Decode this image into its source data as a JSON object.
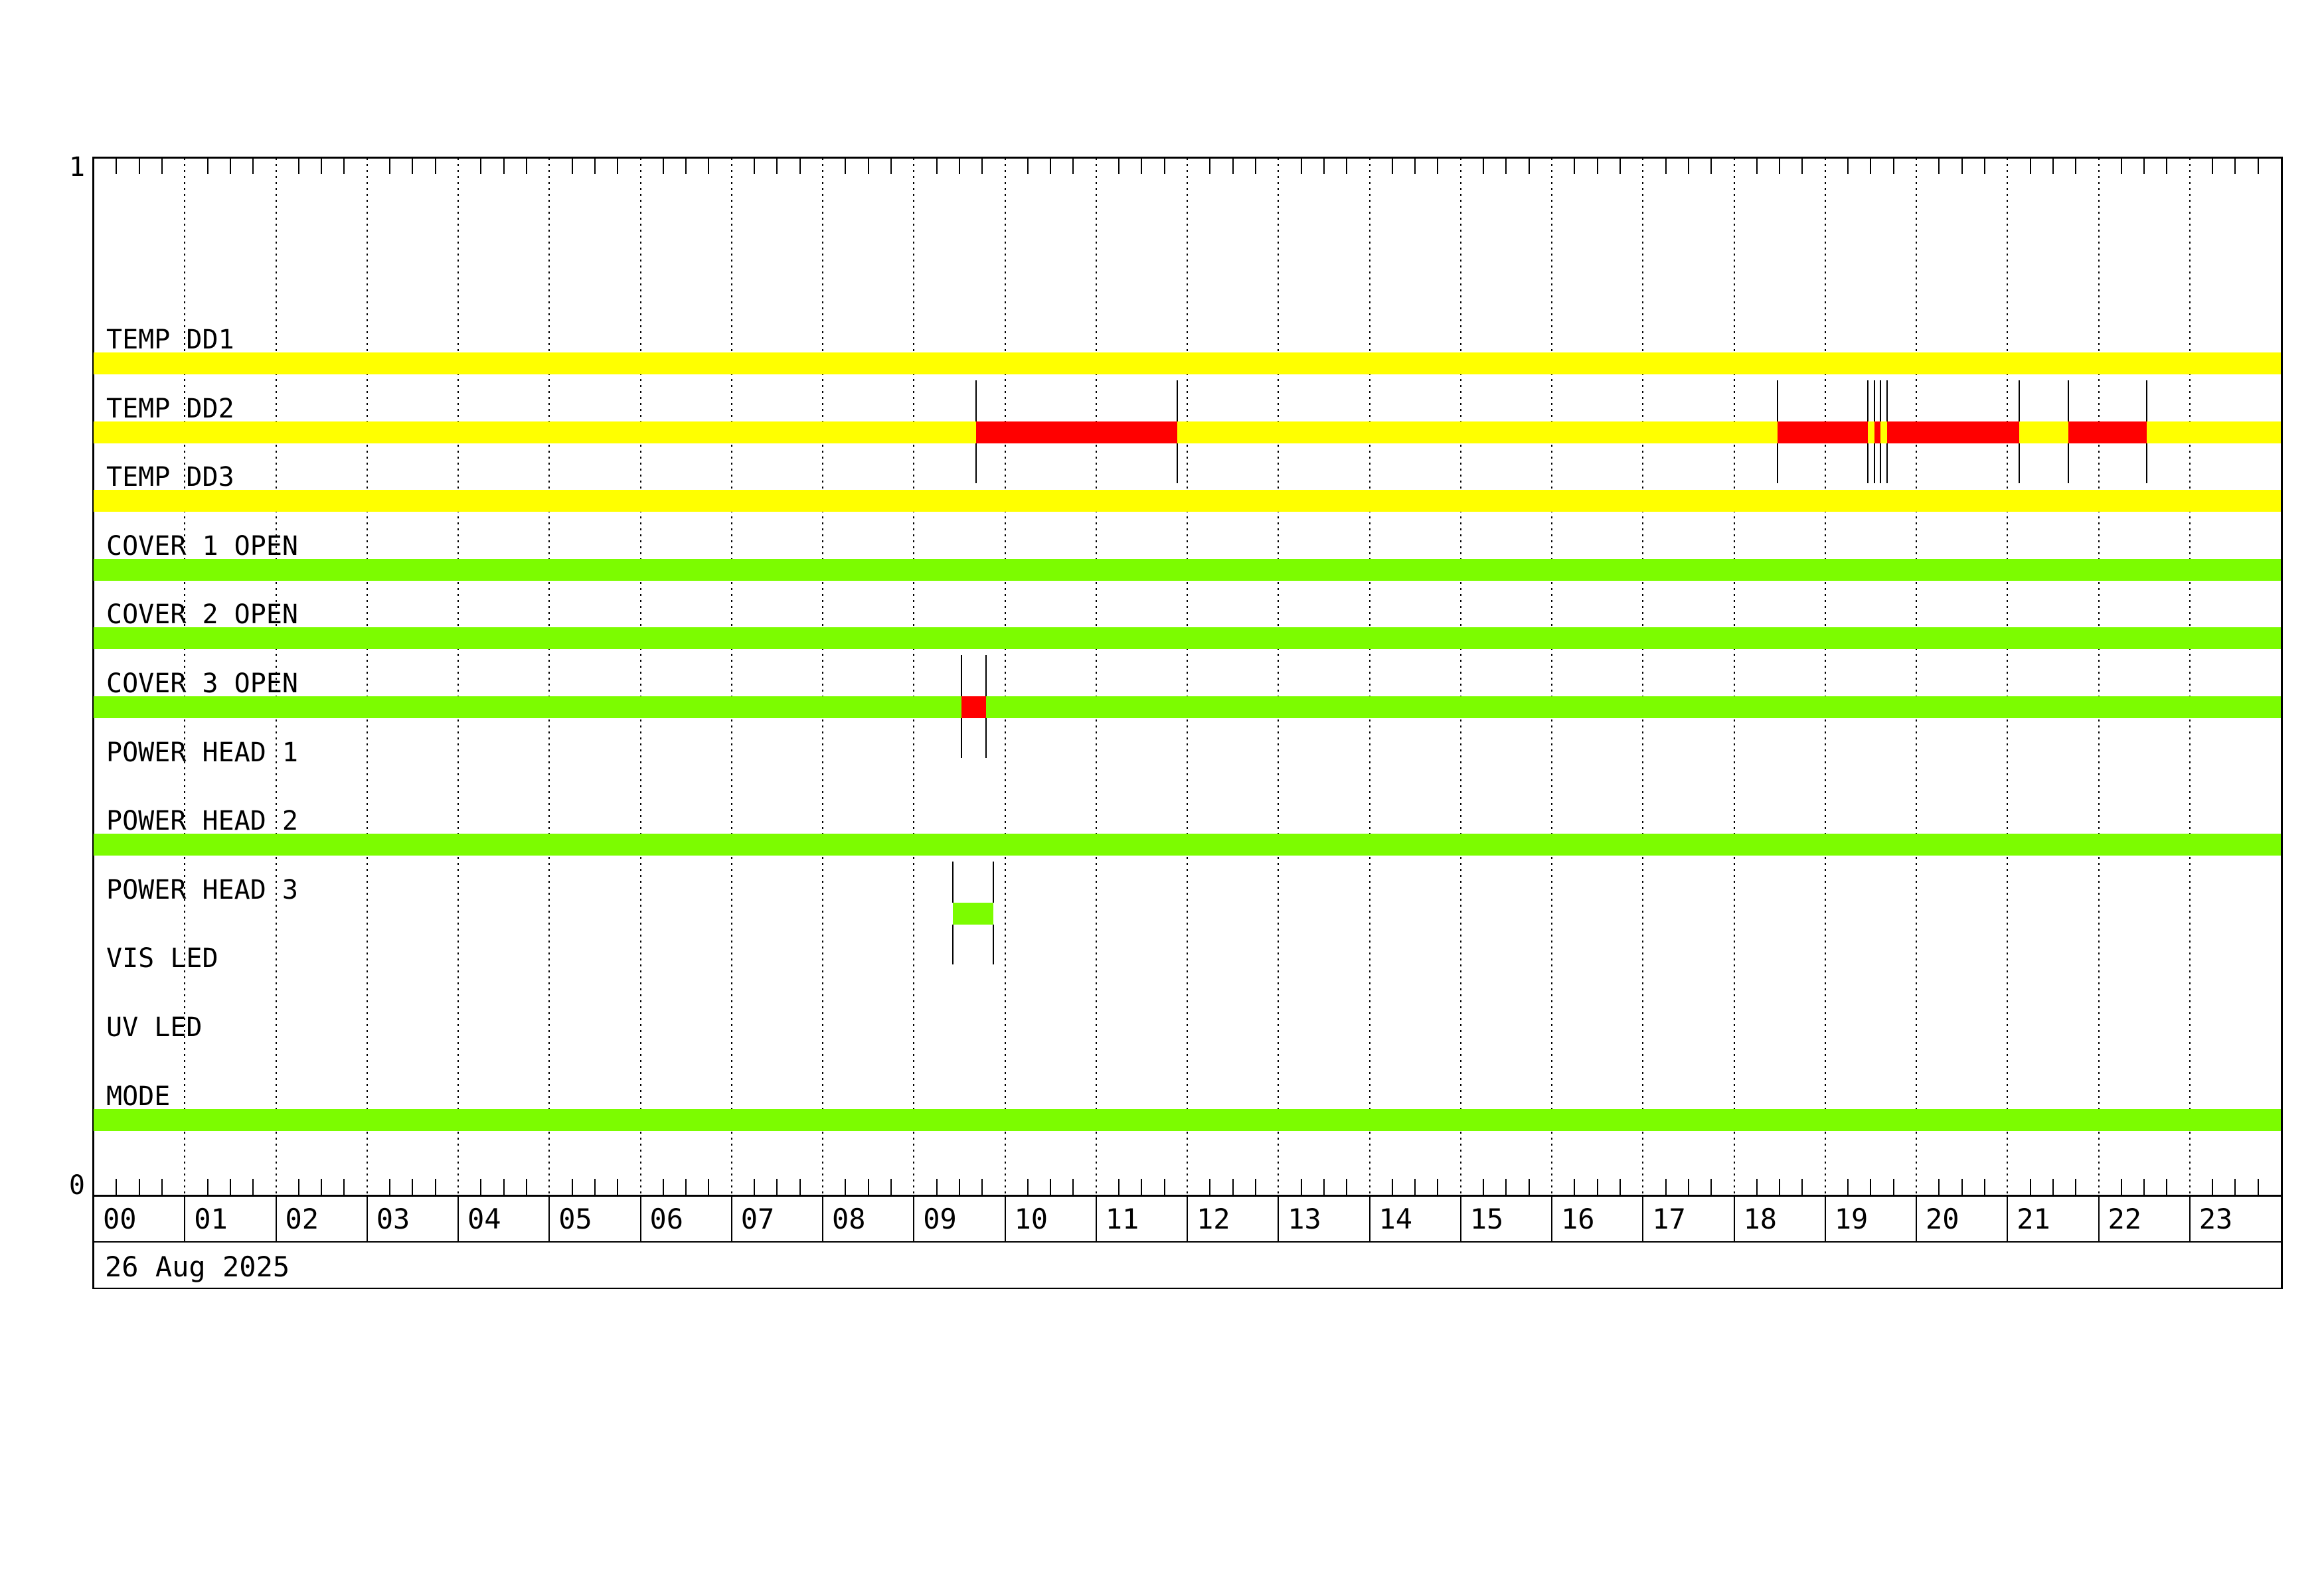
{
  "chart_data": {
    "type": "timeline",
    "description": "24-hour device status timeline with binary state bars per channel",
    "x": {
      "unit": "hour of day",
      "range_hours": [
        0,
        24
      ],
      "hour_tick_labels": [
        "00",
        "01",
        "02",
        "03",
        "04",
        "05",
        "06",
        "07",
        "08",
        "09",
        "10",
        "11",
        "12",
        "13",
        "14",
        "15",
        "16",
        "17",
        "18",
        "19",
        "20",
        "21",
        "22",
        "23"
      ],
      "minor_tick_minutes": 15,
      "grid": "dotted vertical line at each hour",
      "date_label": "26 Aug 2025"
    },
    "y": {
      "top_label": "1",
      "bottom_label": "0"
    },
    "colors": {
      "yellow": "#FFFF00",
      "green": "#7CFC00",
      "red": "#FF0000",
      "line": "#000000"
    },
    "rows": [
      {
        "label": "TEMP DD1",
        "base": {
          "color": "yellow",
          "start": 0,
          "end": 24
        },
        "overlays": [],
        "markers": []
      },
      {
        "label": "TEMP DD2",
        "base": {
          "color": "yellow",
          "start": 0,
          "end": 24
        },
        "overlays": [
          {
            "color": "red",
            "start": 9.68,
            "end": 11.89,
            "start_time": "09:41",
            "end_time": "11:53"
          },
          {
            "color": "red",
            "start": 18.48,
            "end": 19.47,
            "start_time": "18:29",
            "end_time": "19:28"
          },
          {
            "color": "red",
            "start": 19.54,
            "end": 19.61,
            "start_time": "19:32",
            "end_time": "19:37"
          },
          {
            "color": "red",
            "start": 19.68,
            "end": 21.13,
            "start_time": "19:41",
            "end_time": "21:08"
          },
          {
            "color": "red",
            "start": 21.67,
            "end": 22.53,
            "start_time": "21:40",
            "end_time": "22:32"
          }
        ],
        "markers": [
          9.68,
          11.89,
          18.48,
          19.47,
          19.54,
          19.61,
          19.68,
          21.13,
          21.67,
          22.53
        ]
      },
      {
        "label": "TEMP DD3",
        "base": {
          "color": "yellow",
          "start": 0,
          "end": 24
        },
        "overlays": [],
        "markers": []
      },
      {
        "label": "COVER 1 OPEN",
        "base": {
          "color": "green",
          "start": 0,
          "end": 24
        },
        "overlays": [],
        "markers": []
      },
      {
        "label": "COVER 2 OPEN",
        "base": {
          "color": "green",
          "start": 0,
          "end": 24
        },
        "overlays": [],
        "markers": []
      },
      {
        "label": "COVER 3 OPEN",
        "base": {
          "color": "green",
          "start": 0,
          "end": 24
        },
        "overlays": [
          {
            "color": "red",
            "start": 9.52,
            "end": 9.79,
            "start_time": "09:31",
            "end_time": "09:47"
          }
        ],
        "markers": [
          9.52,
          9.79
        ]
      },
      {
        "label": "POWER HEAD 1",
        "base": null,
        "overlays": [],
        "markers": []
      },
      {
        "label": "POWER HEAD 2",
        "base": {
          "color": "green",
          "start": 0,
          "end": 24
        },
        "overlays": [],
        "markers": []
      },
      {
        "label": "POWER HEAD 3",
        "base": null,
        "overlays": [
          {
            "color": "green",
            "start": 9.43,
            "end": 9.87,
            "start_time": "09:26",
            "end_time": "09:52"
          }
        ],
        "markers": [
          9.43,
          9.87
        ]
      },
      {
        "label": "VIS LED",
        "base": null,
        "overlays": [],
        "markers": []
      },
      {
        "label": "UV LED",
        "base": null,
        "overlays": [],
        "markers": []
      },
      {
        "label": "MODE",
        "base": {
          "color": "green",
          "start": 0,
          "end": 24
        },
        "overlays": [],
        "markers": []
      }
    ]
  }
}
